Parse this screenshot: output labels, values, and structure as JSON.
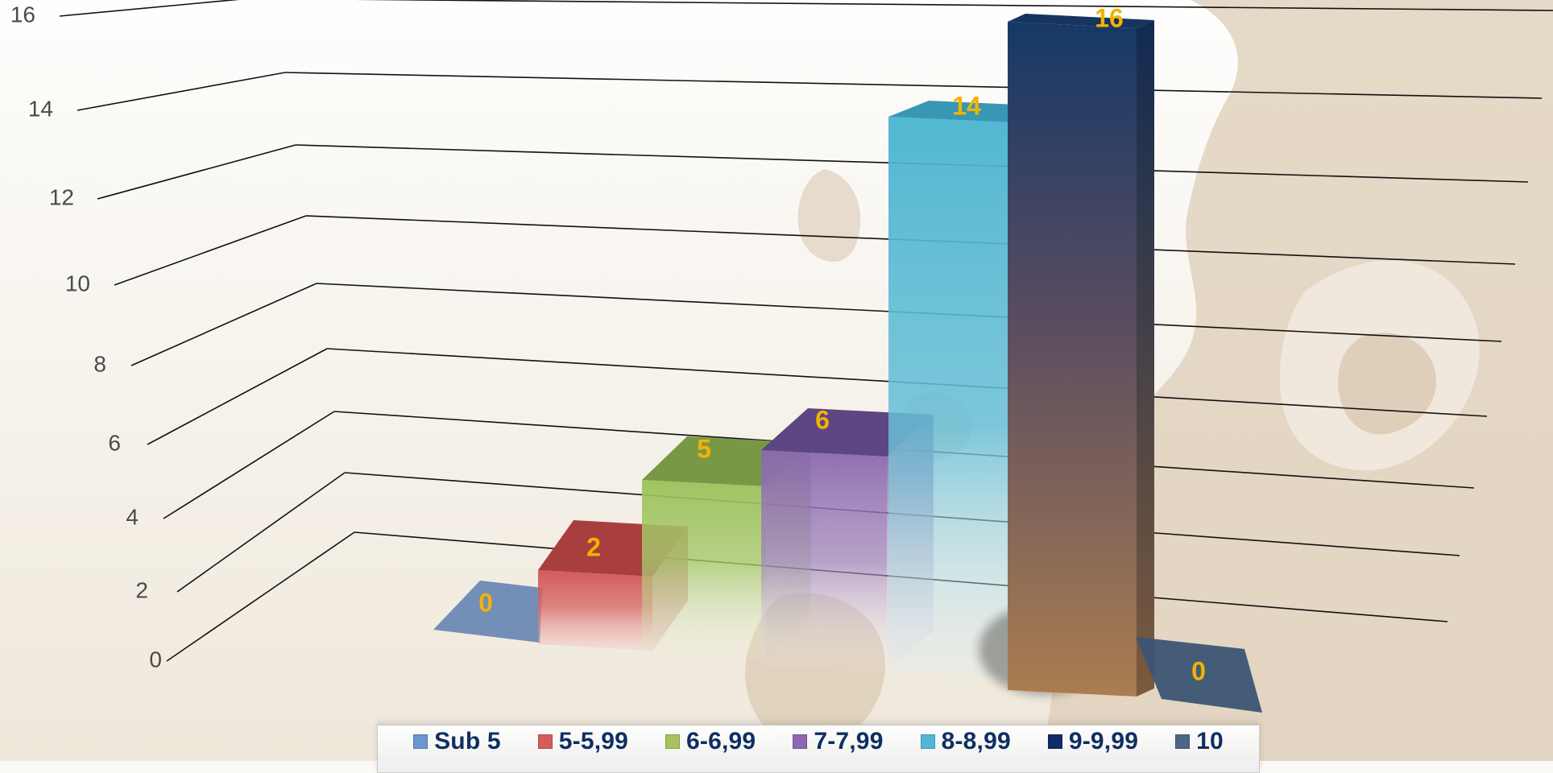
{
  "chart_data": {
    "type": "bar",
    "categories": [
      "Sub 5",
      "5-5,99",
      "6-6,99",
      "7-7,99",
      "8-8,99",
      "9-9,99",
      "10"
    ],
    "values": [
      0,
      2,
      5,
      6,
      14,
      16,
      0
    ],
    "ylim": [
      0,
      16
    ],
    "yticks": [
      0,
      2,
      4,
      6,
      8,
      10,
      12,
      14,
      16
    ],
    "grid": true,
    "legend_position": "bottom",
    "data_label_color": "#f2b300",
    "colors": [
      "#6887b2",
      "#c94848",
      "#97bb56",
      "#8764a8",
      "#58b9d5",
      "#7c5a52",
      "#435f7f"
    ],
    "legend_colors": [
      "#6b97d0",
      "#d65c5c",
      "#a8c35c",
      "#8b68af",
      "#53b6d6",
      "#102b67",
      "#4c6586"
    ]
  }
}
